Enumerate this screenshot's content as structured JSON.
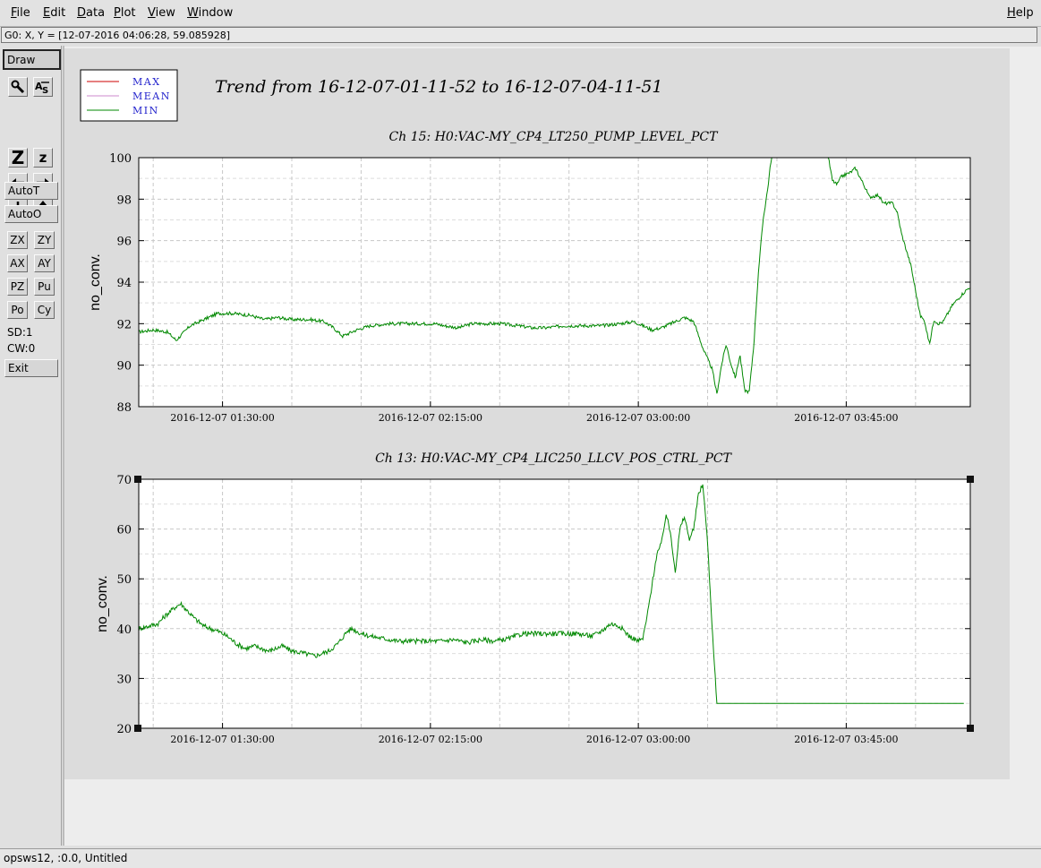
{
  "menu": {
    "file": "File",
    "edit": "Edit",
    "data": "Data",
    "plot": "Plot",
    "view": "View",
    "window": "Window",
    "help": "Help"
  },
  "coord_readout": "G0: X, Y = [12-07-2016 04:06:28, 59.085928]",
  "toolbar": {
    "draw": "Draw",
    "autot": "AutoT",
    "autoo": "AutoO",
    "zx": "ZX",
    "zy": "ZY",
    "ax": "AX",
    "ay": "AY",
    "pz": "PZ",
    "pu": "Pu",
    "po": "Po",
    "cy": "Cy",
    "sd": "SD:1",
    "cw": "CW:0",
    "exit": "Exit",
    "icons": [
      "magnifier-icon",
      "axis-scale-icon",
      "zoom-in-icon",
      "zoom-out-icon",
      "arrow-left-icon",
      "arrow-right-icon",
      "arrow-down-icon",
      "arrow-up-icon"
    ],
    "zoom_big_glyph": "Z",
    "zoom_small_glyph": "z"
  },
  "status": "opsws12, :0.0, Untitled",
  "legend": {
    "entries": [
      {
        "name": "MAX",
        "color": "#cc0000"
      },
      {
        "name": "MEAN",
        "color": "#cc88cc"
      },
      {
        "name": "MIN",
        "color": "#008800"
      }
    ],
    "text_color": "#2222cc"
  },
  "main_title": "Trend from 16-12-07-01-11-52 to 16-12-07-04-11-51",
  "colors": {
    "line": "#008800",
    "max": "#cc0000",
    "grid": "#c8c8c8"
  },
  "chart_data": [
    {
      "type": "line",
      "title": "Ch 15: H0:VAC-MY_CP4_LT250_PUMP_LEVEL_PCT",
      "ylabel": "no_conv.",
      "xlabel": "",
      "xlim_min": [
        71.87,
        251.85
      ],
      "ylim": [
        88,
        100
      ],
      "yticks": [
        88,
        90,
        92,
        94,
        96,
        98,
        100
      ],
      "xticks": [
        {
          "t": 90,
          "label": "2016-12-07 01:30:00"
        },
        {
          "t": 135,
          "label": "2016-12-07 02:15:00"
        },
        {
          "t": 180,
          "label": "2016-12-07 03:00:00"
        },
        {
          "t": 225,
          "label": "2016-12-07 03:45:00"
        }
      ],
      "grid": true,
      "noise": 0.08,
      "series_points": [
        [
          71.9,
          91.6
        ],
        [
          75,
          91.7
        ],
        [
          78,
          91.6
        ],
        [
          80,
          91.2
        ],
        [
          83,
          91.9
        ],
        [
          86,
          92.2
        ],
        [
          89,
          92.5
        ],
        [
          92,
          92.5
        ],
        [
          96,
          92.4
        ],
        [
          99,
          92.2
        ],
        [
          102,
          92.3
        ],
        [
          105,
          92.2
        ],
        [
          109,
          92.2
        ],
        [
          112,
          92.1
        ],
        [
          114,
          91.8
        ],
        [
          116,
          91.4
        ],
        [
          119,
          91.7
        ],
        [
          122,
          91.9
        ],
        [
          126,
          92.0
        ],
        [
          130,
          92.0
        ],
        [
          133,
          92.0
        ],
        [
          136,
          92.0
        ],
        [
          138,
          91.9
        ],
        [
          141,
          91.8
        ],
        [
          144,
          92.0
        ],
        [
          147,
          92.0
        ],
        [
          150,
          92.0
        ],
        [
          154,
          91.9
        ],
        [
          157,
          91.8
        ],
        [
          160,
          91.8
        ],
        [
          164,
          91.9
        ],
        [
          168,
          91.9
        ],
        [
          172,
          91.9
        ],
        [
          176,
          92.0
        ],
        [
          179,
          92.1
        ],
        [
          181,
          91.9
        ],
        [
          183,
          91.7
        ],
        [
          185,
          91.8
        ],
        [
          187,
          92.0
        ],
        [
          190,
          92.3
        ],
        [
          192,
          92.1
        ],
        [
          194,
          90.8
        ],
        [
          196,
          89.8
        ],
        [
          197,
          88.6
        ],
        [
          198,
          90.0
        ],
        [
          199,
          91.0
        ],
        [
          200,
          90.1
        ],
        [
          201,
          89.4
        ],
        [
          202,
          90.5
        ],
        [
          203,
          88.8
        ],
        [
          204,
          88.7
        ],
        [
          205,
          91.0
        ],
        [
          206,
          94.5
        ],
        [
          207,
          97.0
        ],
        [
          208,
          98.5
        ],
        [
          209,
          100.4
        ],
        [
          210,
          100.8
        ],
        [
          221,
          100.2
        ],
        [
          222,
          98.9
        ],
        [
          223,
          98.7
        ],
        [
          224,
          99.1
        ],
        [
          226,
          99.3
        ],
        [
          227,
          99.5
        ],
        [
          229,
          98.6
        ],
        [
          230,
          98.1
        ],
        [
          232,
          98.2
        ],
        [
          233,
          97.8
        ],
        [
          235,
          97.8
        ],
        [
          236,
          97.4
        ],
        [
          237,
          96.3
        ],
        [
          239,
          94.8
        ],
        [
          240,
          93.6
        ],
        [
          241,
          92.4
        ],
        [
          242,
          92.1
        ],
        [
          243,
          91.0
        ],
        [
          244,
          92.2
        ],
        [
          245,
          92.0
        ],
        [
          246,
          92.1
        ],
        [
          248,
          92.9
        ],
        [
          250,
          93.4
        ],
        [
          251.85,
          93.8
        ]
      ]
    },
    {
      "type": "line",
      "title": "Ch 13: H0:VAC-MY_CP4_LIC250_LLCV_POS_CTRL_PCT",
      "ylabel": "no_conv.",
      "xlabel": "",
      "xlim_min": [
        71.87,
        251.85
      ],
      "ylim": [
        20,
        70
      ],
      "yticks": [
        20,
        30,
        40,
        50,
        60,
        70
      ],
      "xticks": [
        {
          "t": 90,
          "label": "2016-12-07 01:30:00"
        },
        {
          "t": 135,
          "label": "2016-12-07 02:15:00"
        },
        {
          "t": 180,
          "label": "2016-12-07 03:00:00"
        },
        {
          "t": 225,
          "label": "2016-12-07 03:45:00"
        }
      ],
      "grid": true,
      "noise": 0.5,
      "series_points": [
        [
          71.9,
          40
        ],
        [
          74,
          40.5
        ],
        [
          76,
          41
        ],
        [
          77.5,
          42.5
        ],
        [
          80,
          44.5
        ],
        [
          81,
          45
        ],
        [
          82,
          44
        ],
        [
          84,
          42
        ],
        [
          86,
          40.5
        ],
        [
          89,
          39.5
        ],
        [
          91,
          38.5
        ],
        [
          93,
          37
        ],
        [
          95,
          36
        ],
        [
          97,
          36.5
        ],
        [
          100,
          35.5
        ],
        [
          103,
          36.5
        ],
        [
          105,
          35.5
        ],
        [
          107,
          35.2
        ],
        [
          110,
          34.5
        ],
        [
          113,
          35.5
        ],
        [
          115,
          37
        ],
        [
          117,
          39.5
        ],
        [
          118,
          40
        ],
        [
          120,
          39
        ],
        [
          122,
          38.5
        ],
        [
          125,
          38
        ],
        [
          128,
          37.5
        ],
        [
          131,
          37.5
        ],
        [
          134,
          37.5
        ],
        [
          137,
          37.5
        ],
        [
          140,
          37.8
        ],
        [
          143,
          37.2
        ],
        [
          146,
          37.8
        ],
        [
          149,
          37.5
        ],
        [
          152,
          38
        ],
        [
          155,
          39
        ],
        [
          158,
          39
        ],
        [
          161,
          39
        ],
        [
          164,
          39
        ],
        [
          167,
          39
        ],
        [
          170,
          38.5
        ],
        [
          172,
          39.5
        ],
        [
          174,
          41
        ],
        [
          176,
          40.5
        ],
        [
          178,
          38.5
        ],
        [
          180,
          37.5
        ],
        [
          181,
          38
        ],
        [
          182,
          43
        ],
        [
          184,
          55
        ],
        [
          185,
          57
        ],
        [
          186,
          63
        ],
        [
          187,
          59
        ],
        [
          188,
          51.5
        ],
        [
          189,
          60
        ],
        [
          190,
          62.5
        ],
        [
          191,
          58
        ],
        [
          192,
          60
        ],
        [
          193,
          67
        ],
        [
          194,
          69
        ],
        [
          195,
          57
        ],
        [
          196,
          40
        ],
        [
          197,
          25
        ],
        [
          250.5,
          25
        ]
      ]
    }
  ]
}
